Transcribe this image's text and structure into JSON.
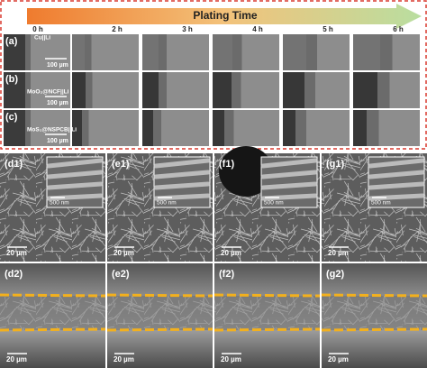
{
  "banner": {
    "title": "Plating Time",
    "times": [
      "0 h",
      "2 h",
      "3 h",
      "4 h",
      "5 h",
      "6 h"
    ]
  },
  "rows": [
    {
      "label": "(a)",
      "cell": "Cu||Li",
      "scale": "100 µm"
    },
    {
      "label": "(b)",
      "cell": "MoO₂@NCF||Li",
      "scale": "100 µm"
    },
    {
      "label": "(c)",
      "cell": "MoS₂@NSPCB||Li",
      "scale": "100 µm"
    }
  ],
  "panels": [
    {
      "label": "(d1)",
      "inset_scale": "500 nm",
      "scale": "20 µm"
    },
    {
      "label": "(e1)",
      "inset_scale": "500 nm",
      "scale": "20 µm"
    },
    {
      "label": "(f1)",
      "inset_scale": "500 nm",
      "scale": "20 µm"
    },
    {
      "label": "(g1)",
      "inset_scale": "500 nm",
      "scale": "20 µm"
    },
    {
      "label": "(d2)",
      "scale": "20 µm"
    },
    {
      "label": "(e2)",
      "scale": "20 µm"
    },
    {
      "label": "(f2)",
      "scale": "20 µm"
    },
    {
      "label": "(g2)",
      "scale": "20 µm"
    }
  ]
}
